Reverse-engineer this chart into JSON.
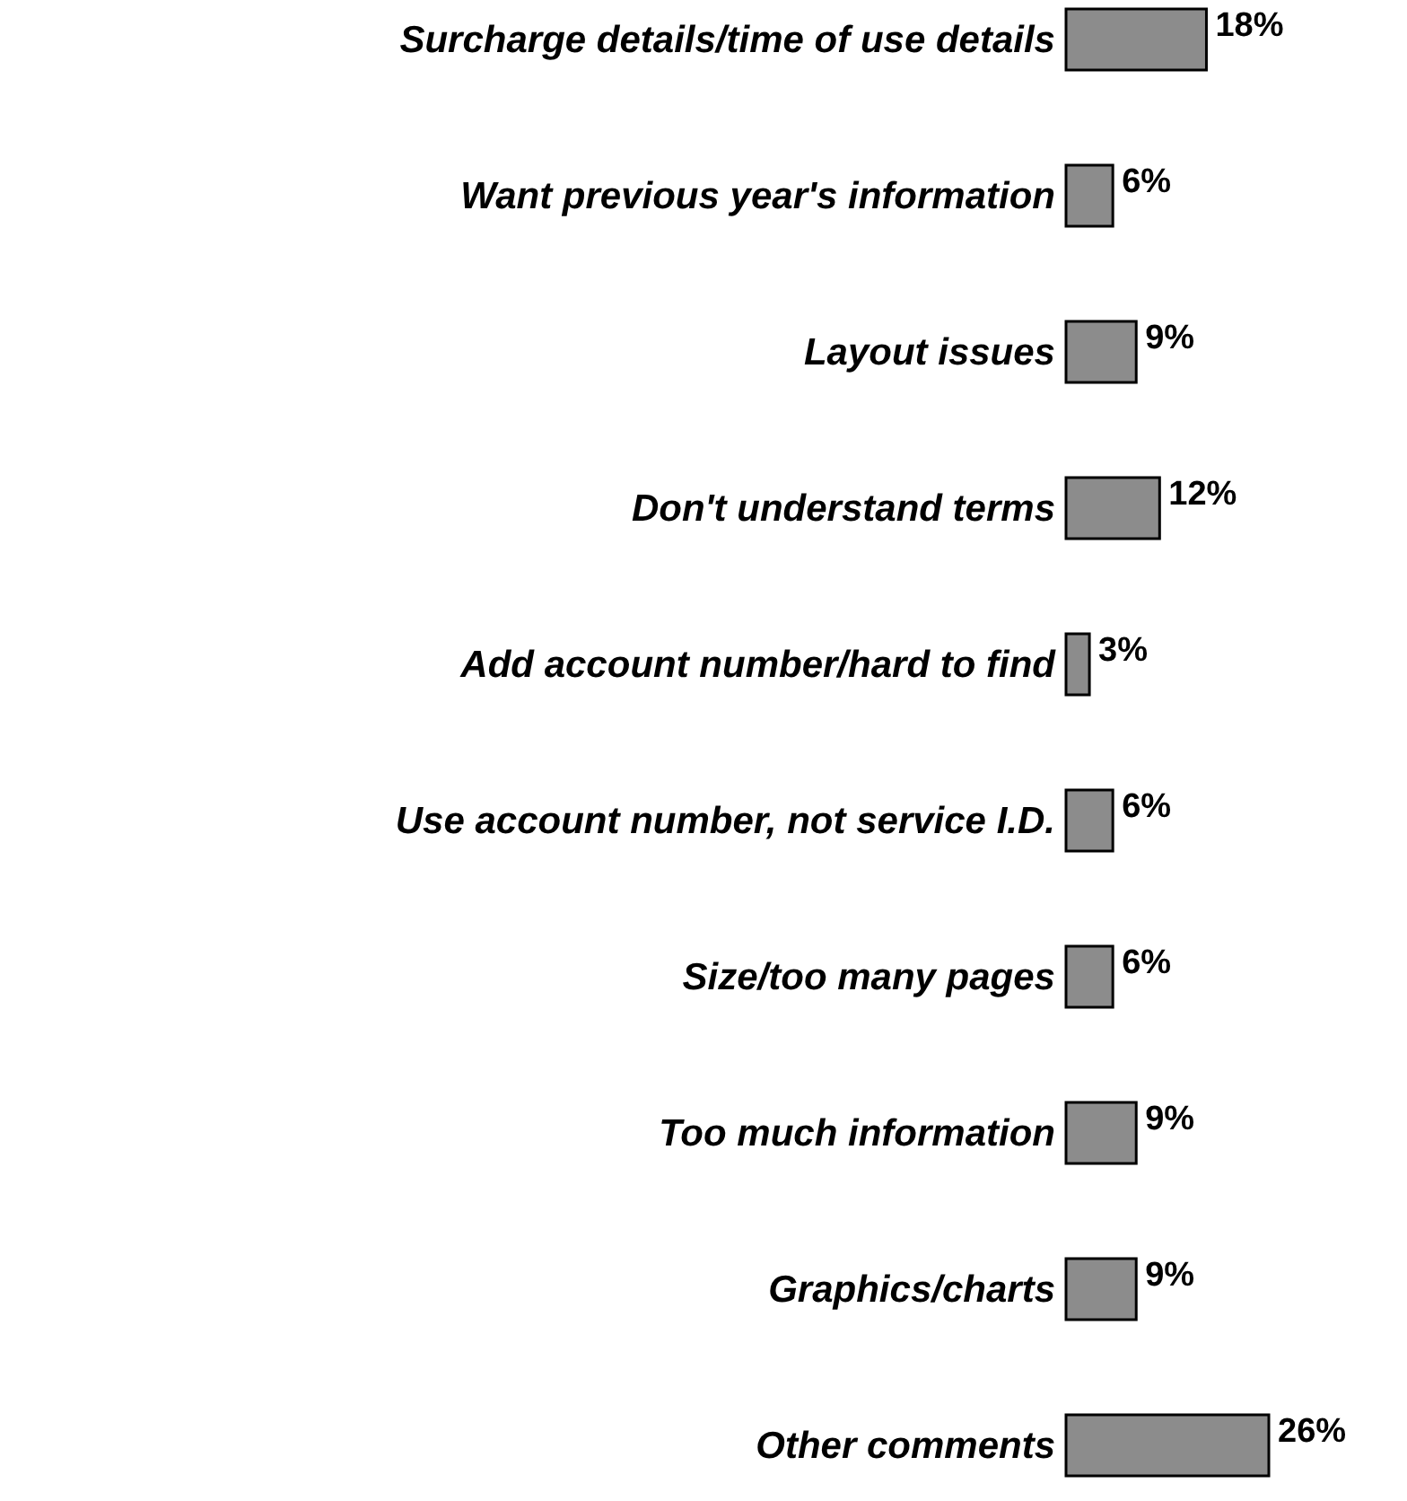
{
  "chart_data": {
    "type": "bar",
    "orientation": "horizontal",
    "categories": [
      "Surcharge details/time of use details",
      "Want previous year's information",
      "Layout issues",
      "Don't understand terms",
      "Add account number/hard to find",
      "Use account number, not service I.D.",
      "Size/too many pages",
      "Too much information",
      "Graphics/charts",
      "Other comments"
    ],
    "values": [
      18,
      6,
      9,
      12,
      3,
      6,
      6,
      9,
      9,
      26
    ],
    "value_labels": [
      "18%",
      "6%",
      "9%",
      "12%",
      "3%",
      "6%",
      "6%",
      "9%",
      "9%",
      "26%"
    ],
    "color": "#8c8c8c"
  }
}
